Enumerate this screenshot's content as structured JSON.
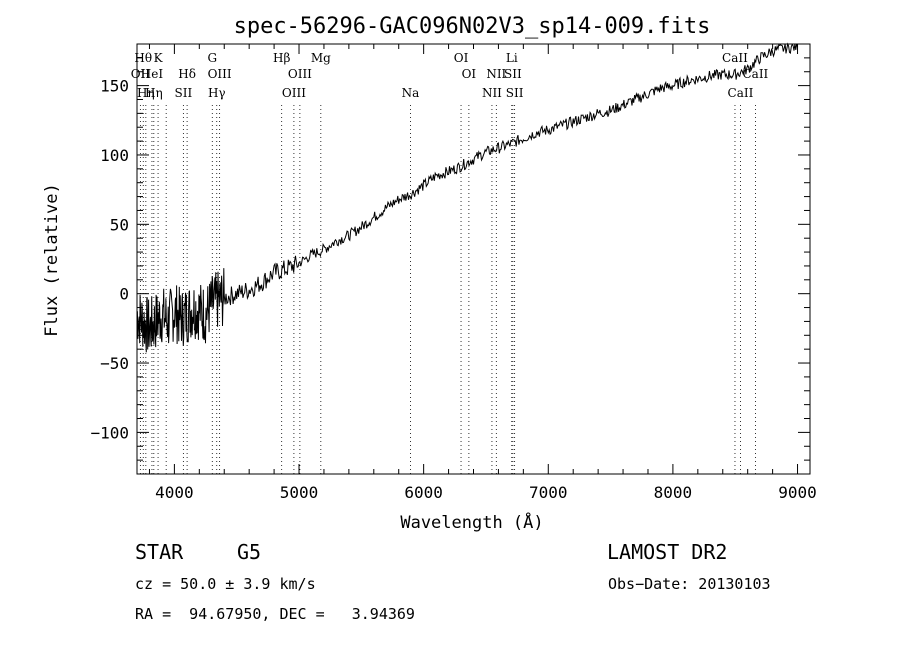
{
  "chart_data": {
    "type": "line",
    "title": "spec-56296-GAC096N02V3_sp14-009.fits",
    "xlabel": "Wavelength (Å)",
    "ylabel": "Flux (relative)",
    "xlim": [
      3700,
      9100
    ],
    "ylim": [
      -130,
      180
    ],
    "x_ticks": [
      4000,
      5000,
      6000,
      7000,
      8000,
      9000
    ],
    "x_tick_labels": [
      "4000",
      "5000",
      "6000",
      "7000",
      "8000",
      "9000"
    ],
    "y_ticks": [
      -100,
      -50,
      0,
      50,
      100,
      150
    ],
    "y_tick_labels": [
      "−100",
      "−50",
      "0",
      "50",
      "100",
      "150"
    ],
    "grid": false,
    "series": [
      {
        "color": "#000000",
        "x": [
          3700,
          3750,
          3800,
          3850,
          3900,
          3950,
          4000,
          4050,
          4100,
          4150,
          4200,
          4250,
          4300,
          4350,
          4400,
          4500,
          4600,
          4700,
          4800,
          4900,
          5000,
          5100,
          5200,
          5300,
          5400,
          5500,
          5600,
          5700,
          5800,
          5900,
          6000,
          6100,
          6200,
          6300,
          6400,
          6500,
          6600,
          6700,
          6800,
          6900,
          7000,
          7100,
          7200,
          7300,
          7400,
          7500,
          7600,
          7700,
          7800,
          7900,
          8000,
          8100,
          8200,
          8300,
          8400,
          8500,
          8600,
          8700,
          8800,
          8900,
          9000
        ],
        "y": [
          -15,
          -20,
          -25,
          -20,
          -15,
          -20,
          -12,
          -18,
          -15,
          -10,
          -12,
          -15,
          -8,
          -5,
          -3,
          0,
          3,
          8,
          15,
          18,
          22,
          28,
          32,
          38,
          42,
          48,
          55,
          62,
          68,
          72,
          78,
          85,
          88,
          92,
          97,
          102,
          105,
          108,
          112,
          116,
          118,
          121,
          124,
          127,
          130,
          132,
          136,
          140,
          144,
          148,
          150,
          153,
          155,
          157,
          158,
          158,
          162,
          170,
          175,
          177,
          178
        ]
      }
    ],
    "line_markers": [
      {
        "x": 3727,
        "label": "OII",
        "row": 2
      },
      {
        "x": 3750,
        "label": "Hθ",
        "row": 1
      },
      {
        "x": 3771,
        "label": "Hη",
        "row": 3
      },
      {
        "x": 3820,
        "label": "HeI",
        "row": 2
      },
      {
        "x": 3835,
        "label": "Hη",
        "row": 3
      },
      {
        "x": 3869,
        "label": "K",
        "row": 1
      },
      {
        "x": 3934,
        "label": "",
        "row": 0
      },
      {
        "x": 4072,
        "label": "SII",
        "row": 3
      },
      {
        "x": 4102,
        "label": "Hδ",
        "row": 2
      },
      {
        "x": 4304,
        "label": "G",
        "row": 1
      },
      {
        "x": 4340,
        "label": "Hγ",
        "row": 3
      },
      {
        "x": 4363,
        "label": "OIII",
        "row": 2
      },
      {
        "x": 4861,
        "label": "Hβ",
        "row": 1
      },
      {
        "x": 4959,
        "label": "OIII",
        "row": 3
      },
      {
        "x": 5007,
        "label": "OIII",
        "row": 2
      },
      {
        "x": 5175,
        "label": "Mg",
        "row": 1
      },
      {
        "x": 5894,
        "label": "Na",
        "row": 3
      },
      {
        "x": 6300,
        "label": "OI",
        "row": 1
      },
      {
        "x": 6363,
        "label": "OI",
        "row": 2
      },
      {
        "x": 6548,
        "label": "NII",
        "row": 3
      },
      {
        "x": 6583,
        "label": "NII",
        "row": 2
      },
      {
        "x": 6707,
        "label": "Li",
        "row": 1
      },
      {
        "x": 6716,
        "label": "SII",
        "row": 2
      },
      {
        "x": 6730,
        "label": "SII",
        "row": 3
      },
      {
        "x": 8498,
        "label": "CaII",
        "row": 1
      },
      {
        "x": 8542,
        "label": "CaII",
        "row": 3
      },
      {
        "x": 8662,
        "label": "CaII",
        "row": 2
      }
    ]
  },
  "info": {
    "class_label": "STAR",
    "subclass_label": "G5",
    "survey_label": "LAMOST DR2",
    "cz_label": "cz = 50.0 ± 3.9 km/s",
    "obs_date_label": "Obs−Date: 20130103",
    "coords_label": "RA =  94.67950, DEC =   3.94369"
  }
}
